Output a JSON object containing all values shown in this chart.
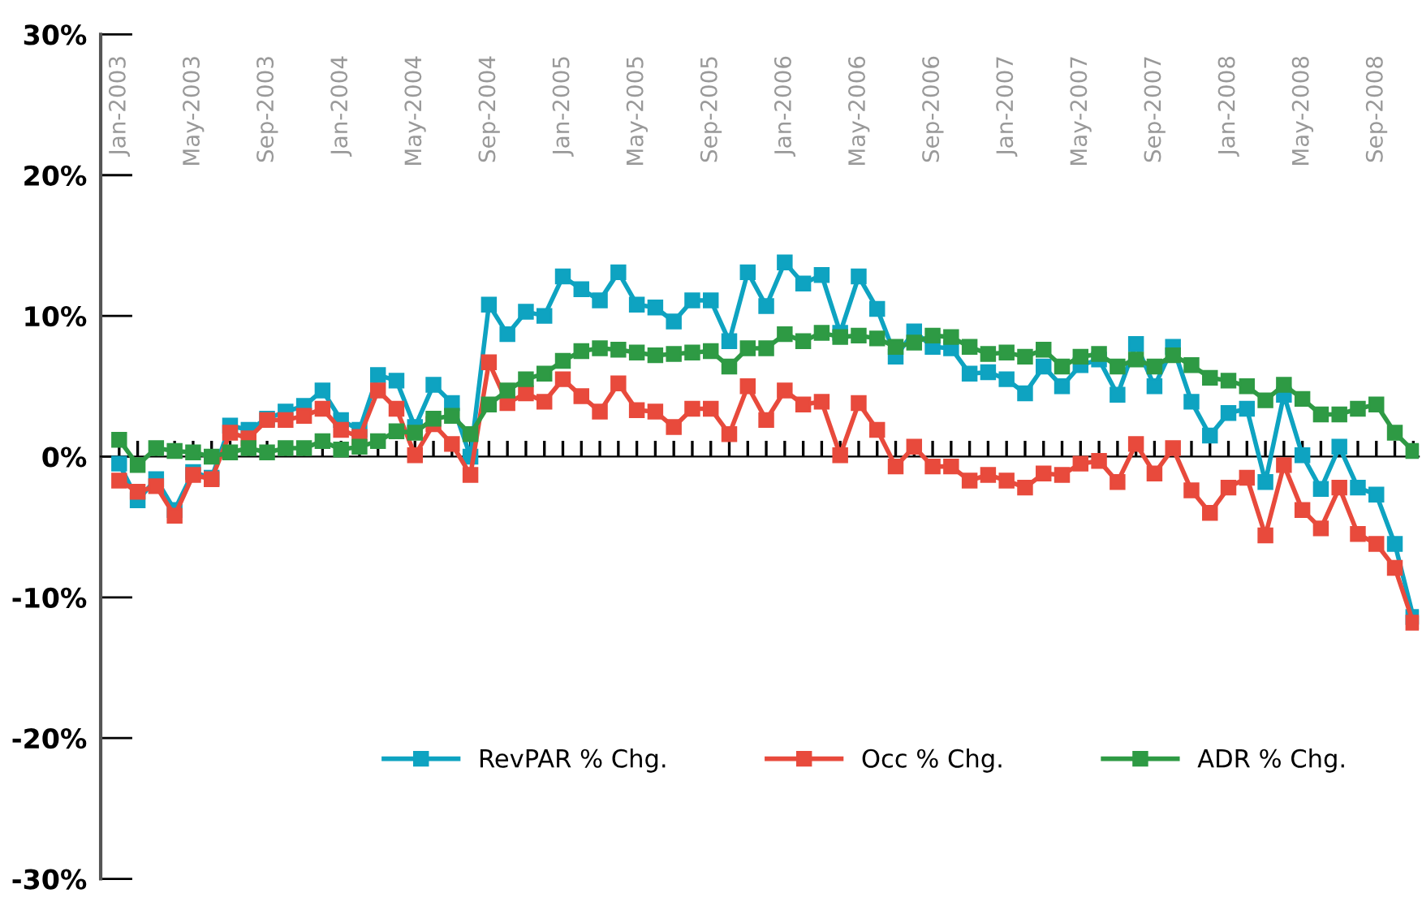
{
  "chart_data": {
    "type": "line",
    "categories": [
      "Jan-2003",
      null,
      null,
      null,
      "May-2003",
      null,
      null,
      null,
      "Sep-2003",
      null,
      null,
      null,
      "Jan-2004",
      null,
      null,
      null,
      "May-2004",
      null,
      null,
      null,
      "Sep-2004",
      null,
      null,
      null,
      "Jan-2005",
      null,
      null,
      null,
      "May-2005",
      null,
      null,
      null,
      "Sep-2005",
      null,
      null,
      null,
      "Jan-2006",
      null,
      null,
      null,
      "May-2006",
      null,
      null,
      null,
      "Sep-2006",
      null,
      null,
      null,
      "Jan-2007",
      null,
      null,
      null,
      "May-2007",
      null,
      null,
      null,
      "Sep-2007",
      null,
      null,
      null,
      "Jan-2008",
      null,
      null,
      null,
      "May-2008",
      null,
      null,
      null,
      "Sep-2008",
      null,
      null
    ],
    "series": [
      {
        "name": "RevPAR % Chg.",
        "color": "#0ea3c1",
        "values": [
          -0.5,
          -3.1,
          -1.6,
          -3.8,
          -1.1,
          -1.5,
          2.2,
          1.9,
          2.7,
          3.2,
          3.6,
          4.7,
          2.6,
          1.9,
          5.8,
          5.4,
          2.1,
          5.1,
          3.8,
          0,
          10.8,
          8.7,
          10.3,
          10.0,
          12.8,
          11.9,
          11.1,
          13.1,
          10.8,
          10.6,
          9.6,
          11.1,
          11.1,
          8.2,
          13.1,
          10.7,
          13.8,
          12.3,
          12.9,
          8.8,
          12.8,
          10.5,
          7.1,
          8.9,
          7.8,
          7.7,
          5.9,
          6.0,
          5.5,
          4.5,
          6.4,
          5.0,
          6.5,
          6.9,
          4.4,
          8.0,
          5.0,
          7.8,
          3.9,
          1.5,
          3.1,
          3.4,
          -1.8,
          4.4,
          0.1,
          -2.3,
          0.7,
          -2.2,
          -2.7,
          -6.2,
          -11.4
        ]
      },
      {
        "name": "Occ % Chg.",
        "color": "#e84a3c",
        "values": [
          -1.7,
          -2.5,
          -2.1,
          -4.2,
          -1.3,
          -1.6,
          1.7,
          1.3,
          2.6,
          2.6,
          2.9,
          3.4,
          1.9,
          1.4,
          4.7,
          3.4,
          0.1,
          2.3,
          0.9,
          -1.3,
          6.7,
          3.8,
          4.5,
          3.9,
          5.5,
          4.3,
          3.2,
          5.2,
          3.3,
          3.2,
          2.1,
          3.4,
          3.4,
          1.6,
          5.0,
          2.6,
          4.7,
          3.7,
          3.9,
          0.1,
          3.8,
          1.9,
          -0.7,
          0.7,
          -0.7,
          -0.7,
          -1.7,
          -1.3,
          -1.7,
          -2.2,
          -1.2,
          -1.3,
          -0.5,
          -0.3,
          -1.8,
          0.9,
          -1.2,
          0.6,
          -2.4,
          -4.0,
          -2.2,
          -1.5,
          -5.6,
          -0.6,
          -3.8,
          -5.1,
          -2.2,
          -5.5,
          -6.2,
          -7.9,
          -11.8
        ]
      },
      {
        "name": "ADR % Chg.",
        "color": "#2e9a44",
        "values": [
          1.2,
          -0.6,
          0.6,
          0.4,
          0.3,
          0,
          0.3,
          0.6,
          0.3,
          0.6,
          0.6,
          1.1,
          0.5,
          0.7,
          1.1,
          1.8,
          1.7,
          2.7,
          2.9,
          1.6,
          3.7,
          4.7,
          5.5,
          5.9,
          6.8,
          7.5,
          7.7,
          7.6,
          7.4,
          7.2,
          7.3,
          7.4,
          7.5,
          6.4,
          7.7,
          7.7,
          8.7,
          8.2,
          8.8,
          8.5,
          8.6,
          8.4,
          7.8,
          8.1,
          8.6,
          8.5,
          7.8,
          7.3,
          7.4,
          7.1,
          7.6,
          6.4,
          7.1,
          7.3,
          6.4,
          6.9,
          6.4,
          7.2,
          6.5,
          5.6,
          5.4,
          5.0,
          4.0,
          5.1,
          4.1,
          3.0,
          3.0,
          3.4,
          3.7,
          1.7,
          0.4
        ]
      }
    ],
    "ylim": [
      -30,
      30
    ],
    "yticks": [
      {
        "value": -30,
        "label": "-30%"
      },
      {
        "value": -20,
        "label": "-20%"
      },
      {
        "value": -10,
        "label": "-10%"
      },
      {
        "value": 0,
        "label": "0%"
      },
      {
        "value": 10,
        "label": "10%"
      },
      {
        "value": 20,
        "label": "20%"
      },
      {
        "value": 30,
        "label": "30%"
      }
    ],
    "marker": "square",
    "line_style": "solid",
    "legend": "bottom"
  }
}
